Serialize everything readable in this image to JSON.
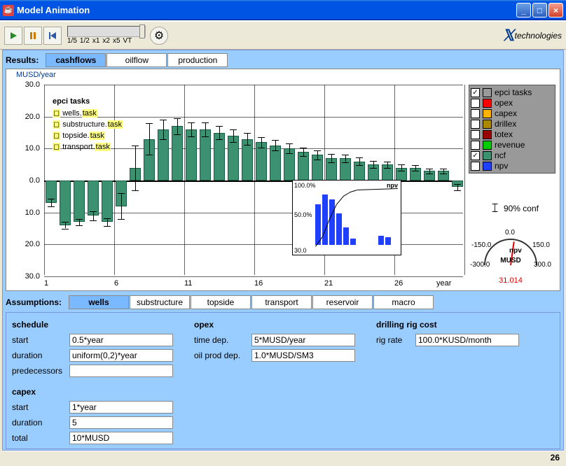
{
  "window": {
    "title": "Model Animation"
  },
  "toolbar": {
    "speed_ticks": [
      "1/5",
      "1/2",
      "x1",
      "x2",
      "x5",
      "VT"
    ]
  },
  "logo": "technologies",
  "results": {
    "label": "Results:",
    "tabs": [
      "cashflows",
      "oilflow",
      "production"
    ],
    "active": 0
  },
  "chart": {
    "ylabel": "MUSD/year",
    "yticks": [
      "30.0",
      "20.0",
      "10.0",
      "0.0",
      "10.0",
      "20.0",
      "30.0"
    ],
    "xticks": [
      "1",
      "6",
      "11",
      "16",
      "21",
      "26",
      "year"
    ],
    "ncf": {
      "color": "#3c9270",
      "values": [
        -7,
        -14,
        -13,
        -11,
        -13,
        -8,
        4,
        13,
        16,
        17,
        16,
        16,
        15,
        14,
        13,
        12,
        11,
        10,
        9,
        8,
        7,
        7,
        6,
        5,
        5,
        4,
        4,
        3,
        3,
        -2
      ],
      "err": [
        1.2,
        1.0,
        1.0,
        1.4,
        1.2,
        4.0,
        7.0,
        5.0,
        3.0,
        2.5,
        2.2,
        2.2,
        2.0,
        2.0,
        1.8,
        1.6,
        1.6,
        1.5,
        1.4,
        1.4,
        1.3,
        1.2,
        1.2,
        1.1,
        1.0,
        1.0,
        0.9,
        0.8,
        0.8,
        1.0
      ]
    },
    "tasks": {
      "header": "epci tasks",
      "items": [
        "wells.task",
        "substructure.task",
        "topside.task",
        "transport.task"
      ]
    }
  },
  "legend": [
    {
      "label": "epci tasks",
      "color": "#999999",
      "checked": true
    },
    {
      "label": "opex",
      "color": "#ff0000",
      "checked": false
    },
    {
      "label": "capex",
      "color": "#ffb300",
      "checked": false
    },
    {
      "label": "drillex",
      "color": "#aa8800",
      "checked": false
    },
    {
      "label": "totex",
      "color": "#990000",
      "checked": false
    },
    {
      "label": "revenue",
      "color": "#00cc00",
      "checked": false
    },
    {
      "label": "ncf",
      "color": "#3c9270",
      "checked": true
    },
    {
      "label": "npv",
      "color": "#2040ff",
      "checked": false
    }
  ],
  "conf": "90% conf",
  "gauge": {
    "label": "npv",
    "unit": "MUSD",
    "value": "31.014",
    "ticks": [
      "-300.0",
      "-150.0",
      "0.0",
      "150.0",
      "300.0"
    ]
  },
  "npvinset": {
    "label": "npv",
    "yticks": [
      "100.0%",
      "50.0%"
    ],
    "xmin": "30.0"
  },
  "assumptions": {
    "label": "Assumptions:",
    "tabs": [
      "wells",
      "substructure",
      "topside",
      "transport",
      "reservoir",
      "macro"
    ],
    "active": 0
  },
  "form": {
    "schedule": {
      "label": "schedule",
      "start": {
        "l": "start",
        "v": "0.5*year"
      },
      "duration": {
        "l": "duration",
        "v": "uniform(0,2)*year"
      },
      "predecessors": {
        "l": "predecessors",
        "v": ""
      }
    },
    "capex": {
      "label": "capex",
      "start": {
        "l": "start",
        "v": "1*year"
      },
      "duration": {
        "l": "duration",
        "v": "5"
      },
      "total": {
        "l": "total",
        "v": "10*MUSD"
      }
    },
    "opex": {
      "label": "opex",
      "timedep": {
        "l": "time dep.",
        "v": "5*MUSD/year"
      },
      "oilprod": {
        "l": "oil prod dep.",
        "v": "1.0*MUSD/SM3"
      }
    },
    "rig": {
      "label": "drilling rig cost",
      "rate": {
        "l": "rig rate",
        "v": "100.0*KUSD/month"
      }
    }
  },
  "status": "26"
}
